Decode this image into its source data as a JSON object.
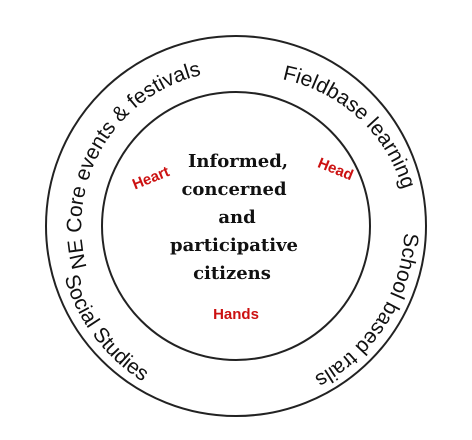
{
  "ring_labels": {
    "top_left": "NE Core events & festivals",
    "top_right": "Fieldbase learning",
    "right": "School based trails",
    "bottom_left": "Social Studies"
  },
  "center_lines": [
    "Informed,",
    "concerned",
    "and",
    "participative",
    "citizens"
  ],
  "dimensions": {
    "heart": "Heart",
    "head": "Head",
    "hands": "Hands"
  },
  "colors": {
    "line": "#222222",
    "text": "#111111",
    "accent": "#cc1111"
  }
}
